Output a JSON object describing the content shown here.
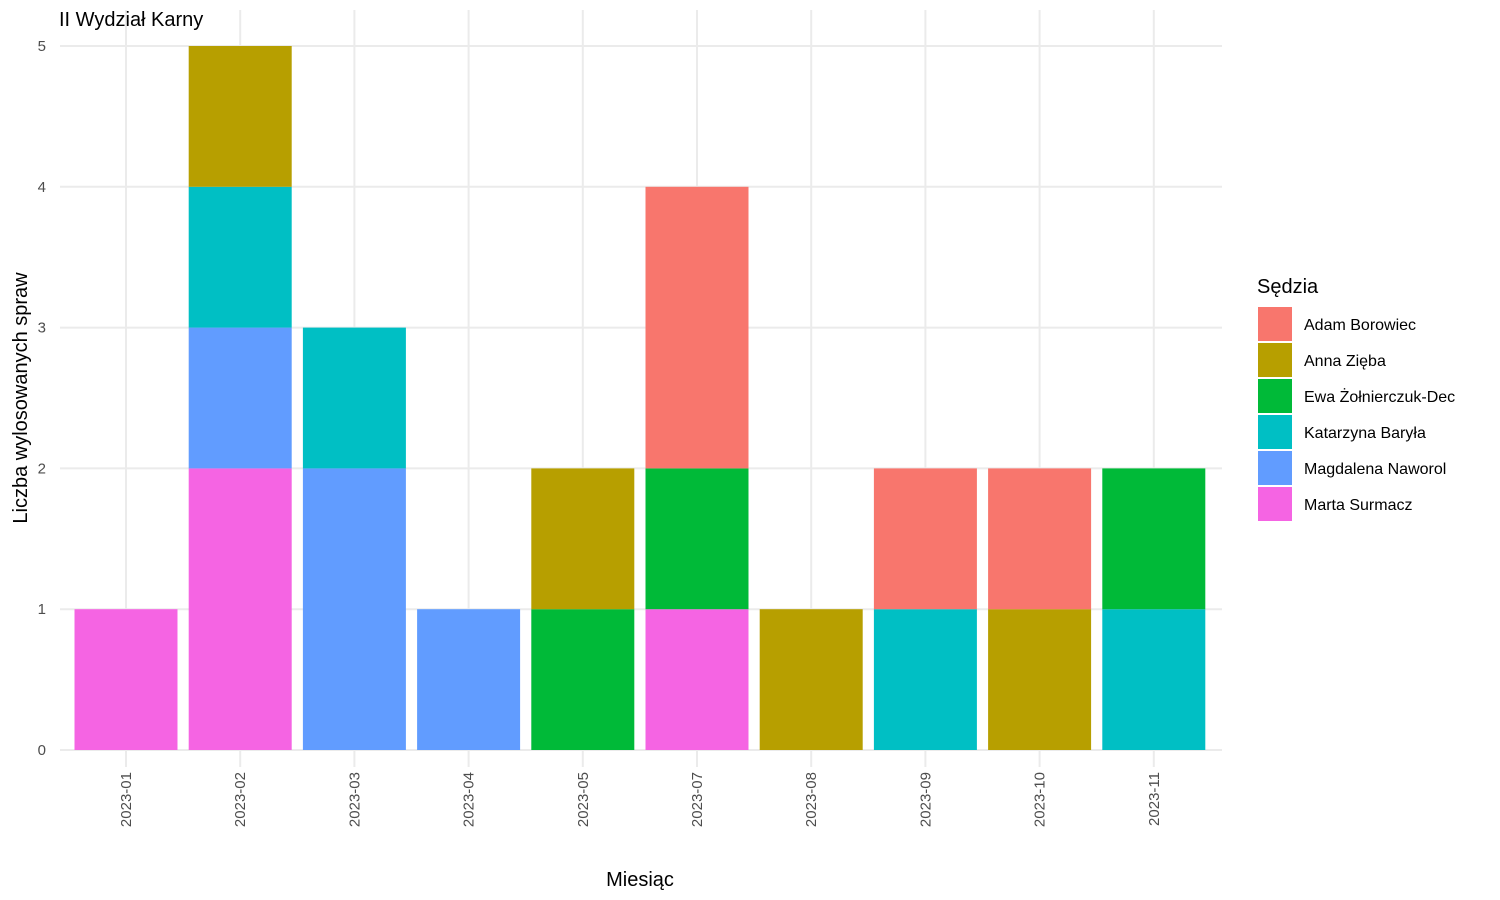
{
  "chart_data": {
    "type": "bar",
    "stacked": true,
    "title": "II Wydział Karny",
    "xlabel": "Miesiąc",
    "ylabel": "Liczba wylosowanych spraw",
    "ylim": [
      0,
      5
    ],
    "yticks": [
      0,
      1,
      2,
      3,
      4,
      5
    ],
    "grid": true,
    "legend": {
      "title": "Sędzia",
      "position": "right"
    },
    "categories": [
      "2023-01",
      "2023-02",
      "2023-03",
      "2023-04",
      "2023-05",
      "2023-07",
      "2023-08",
      "2023-09",
      "2023-10",
      "2023-11"
    ],
    "series": [
      {
        "name": "Adam Borowiec",
        "color": "#F8766D",
        "values": [
          0,
          0,
          0,
          0,
          0,
          2,
          0,
          1,
          1,
          0
        ]
      },
      {
        "name": "Anna Zięba",
        "color": "#B79F00",
        "values": [
          0,
          1,
          0,
          0,
          1,
          0,
          1,
          0,
          1,
          0
        ]
      },
      {
        "name": "Ewa Żołnierczuk-Dec",
        "color": "#00BA38",
        "values": [
          0,
          0,
          0,
          0,
          1,
          1,
          0,
          0,
          0,
          1
        ]
      },
      {
        "name": "Katarzyna Baryła",
        "color": "#00BFC4",
        "values": [
          0,
          1,
          1,
          0,
          0,
          0,
          0,
          1,
          0,
          1
        ]
      },
      {
        "name": "Magdalena Naworol",
        "color": "#619CFF",
        "values": [
          0,
          1,
          2,
          1,
          0,
          0,
          0,
          0,
          0,
          0
        ]
      },
      {
        "name": "Marta Surmacz",
        "color": "#F564E3",
        "values": [
          1,
          2,
          0,
          0,
          0,
          1,
          0,
          0,
          0,
          0
        ]
      }
    ]
  }
}
